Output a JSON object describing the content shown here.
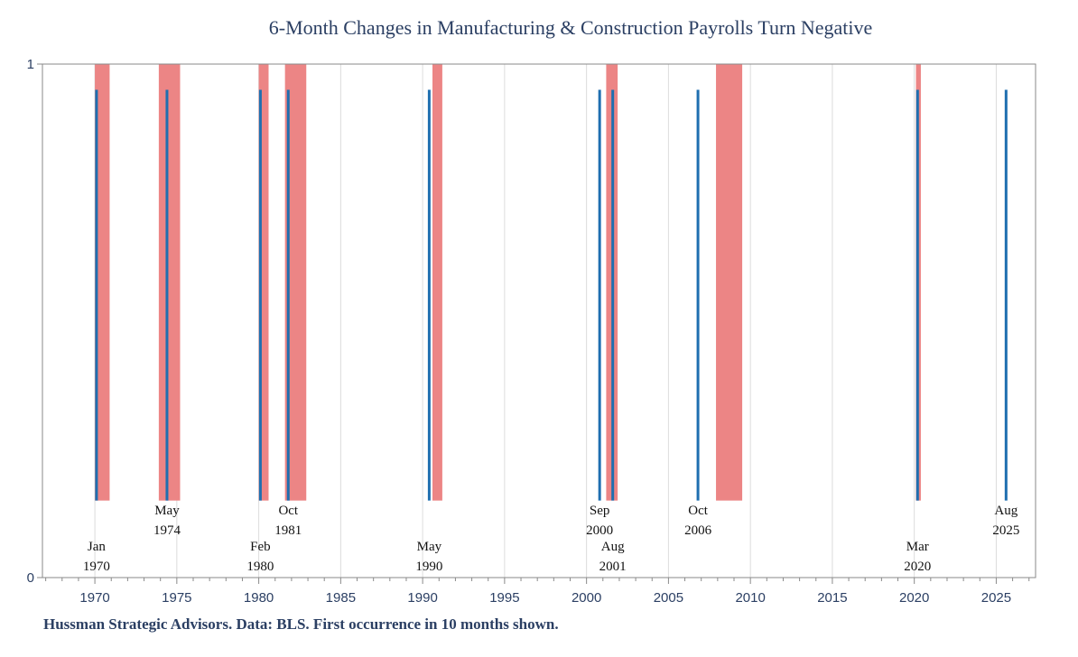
{
  "chart_data": {
    "type": "bar",
    "title": "6-Month Changes in Manufacturing & Construction Payrolls Turn Negative",
    "xlabel": "",
    "ylabel": "",
    "xlim": [
      1966.8,
      2027.4
    ],
    "ylim": [
      0,
      1
    ],
    "x_ticks": [
      1970,
      1975,
      1980,
      1985,
      1990,
      1995,
      2000,
      2005,
      2010,
      2015,
      2020,
      2025
    ],
    "y_ticks": [
      0,
      1
    ],
    "grid": true,
    "recession_shading": [
      {
        "start": 1970.0,
        "end": 1970.9
      },
      {
        "start": 1973.9,
        "end": 1975.2
      },
      {
        "start": 1980.0,
        "end": 1980.6
      },
      {
        "start": 1981.6,
        "end": 1982.9
      },
      {
        "start": 1990.6,
        "end": 1991.2
      },
      {
        "start": 2001.2,
        "end": 2001.9
      },
      {
        "start": 2007.9,
        "end": 2009.5
      },
      {
        "start": 2020.1,
        "end": 2020.4
      }
    ],
    "signal_value": 0.95,
    "signal_floor": 0.15,
    "signals": [
      {
        "x": 1970.1,
        "month": "Jan",
        "year": "1970",
        "row": "low"
      },
      {
        "x": 1974.4,
        "month": "May",
        "year": "1974",
        "row": "high"
      },
      {
        "x": 1980.1,
        "month": "Feb",
        "year": "1980",
        "row": "low"
      },
      {
        "x": 1981.8,
        "month": "Oct",
        "year": "1981",
        "row": "high"
      },
      {
        "x": 1990.4,
        "month": "May",
        "year": "1990",
        "row": "low"
      },
      {
        "x": 2000.8,
        "month": "Sep",
        "year": "2000",
        "row": "high"
      },
      {
        "x": 2001.6,
        "month": "Aug",
        "year": "2001",
        "row": "low"
      },
      {
        "x": 2006.8,
        "month": "Oct",
        "year": "2006",
        "row": "high"
      },
      {
        "x": 2020.2,
        "month": "Mar",
        "year": "2020",
        "row": "low"
      },
      {
        "x": 2025.6,
        "month": "Aug",
        "year": "2025",
        "row": "high"
      }
    ]
  },
  "footer": "Hussman Strategic Advisors. Data: BLS. First occurrence in 10 months shown.",
  "colors": {
    "shading": "#ec8585",
    "signal": "#1f6fb0",
    "axis": "#8a8a8a",
    "grid": "#dcdcdc",
    "text": "#2b3f63"
  }
}
